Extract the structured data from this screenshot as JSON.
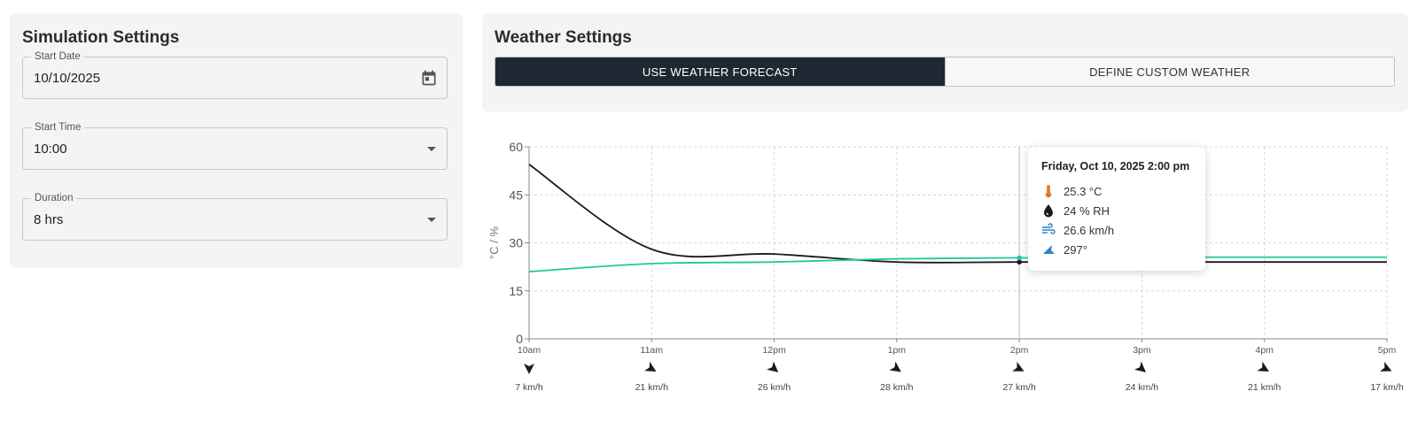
{
  "simulation": {
    "title": "Simulation Settings",
    "start_date": {
      "label": "Start Date",
      "value": "10/10/2025"
    },
    "start_time": {
      "label": "Start Time",
      "value": "10:00"
    },
    "duration": {
      "label": "Duration",
      "value": "8 hrs"
    }
  },
  "weather": {
    "title": "Weather Settings",
    "toggle": {
      "forecast_label": "USE WEATHER FORECAST",
      "custom_label": "DEFINE CUSTOM WEATHER",
      "selected": "forecast"
    }
  },
  "chart_data": {
    "type": "line",
    "ylabel": "°C / %",
    "ylim": [
      0,
      60
    ],
    "yticks": [
      0,
      15,
      30,
      45,
      60
    ],
    "x": [
      "10am",
      "11am",
      "12pm",
      "1pm",
      "2pm",
      "3pm",
      "4pm",
      "5pm"
    ],
    "grid": true,
    "series": [
      {
        "color": "#1a1a1a",
        "values": [
          54.5,
          28.0,
          26.5,
          24.0,
          24.0,
          24.0,
          24.0,
          24.0
        ]
      },
      {
        "color": "#1fc7a3",
        "values": [
          21.0,
          23.5,
          24.0,
          25.0,
          25.3,
          25.5,
          25.5,
          25.5
        ]
      }
    ],
    "wind": {
      "speeds": [
        "7 km/h",
        "21 km/h",
        "26 km/h",
        "28 km/h",
        "27 km/h",
        "24 km/h",
        "21 km/h",
        "17 km/h"
      ],
      "directions_deg": [
        0,
        300,
        310,
        305,
        297,
        310,
        300,
        295
      ]
    },
    "highlight_index": 4
  },
  "tooltip": {
    "title": "Friday, Oct 10, 2025 2:00 pm",
    "temperature": "25.3 °C",
    "humidity": "24 % RH",
    "wind_speed": "26.6 km/h",
    "wind_direction": "297°",
    "icons": [
      "thermometer-icon",
      "humidity-drop-icon",
      "wind-icon",
      "wind-direction-icon"
    ],
    "colors": {
      "thermometer": "#e07a1f",
      "drop": "#1a1a1a",
      "wind": "#2f7fd1",
      "direction": "#2f7fd1"
    }
  }
}
